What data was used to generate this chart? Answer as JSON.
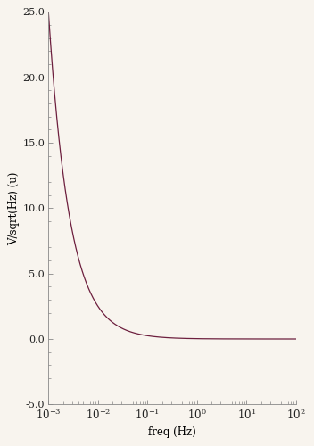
{
  "title": "",
  "xlabel": "freq (Hz)",
  "ylabel": "V/sqrt(Hz) (u)",
  "xlim_log_min": -3,
  "xlim_log_max": 2,
  "ylim": [
    -5.0,
    25.0
  ],
  "yticks": [
    -5.0,
    0.0,
    5.0,
    10.0,
    15.0,
    20.0,
    25.0
  ],
  "line_color": "#6d1f3e",
  "bg_color": "#f8f4ee",
  "noise_amplitude": 0.025,
  "x_start_exp": -3,
  "x_end_exp": 2
}
